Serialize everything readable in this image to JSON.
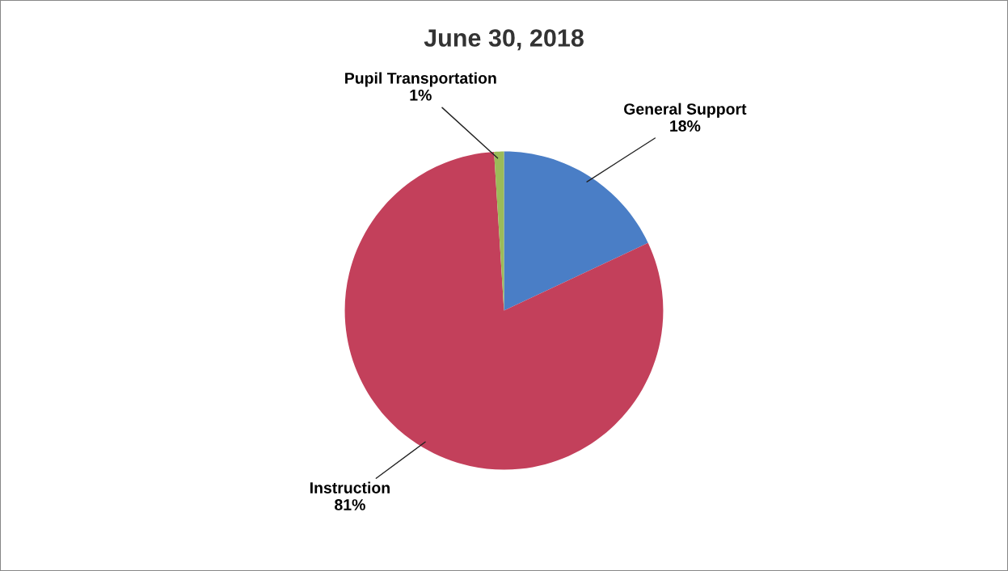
{
  "chart_data": {
    "type": "pie",
    "title": "June 30, 2018",
    "categories": [
      "General Support",
      "Instruction",
      "Pupil Transportation"
    ],
    "values": [
      18,
      81,
      1
    ],
    "value_labels": [
      "18%",
      "81%",
      "1%"
    ],
    "colors": [
      "#4a7ec6",
      "#c3405b",
      "#9bbb59"
    ],
    "legend": false
  }
}
